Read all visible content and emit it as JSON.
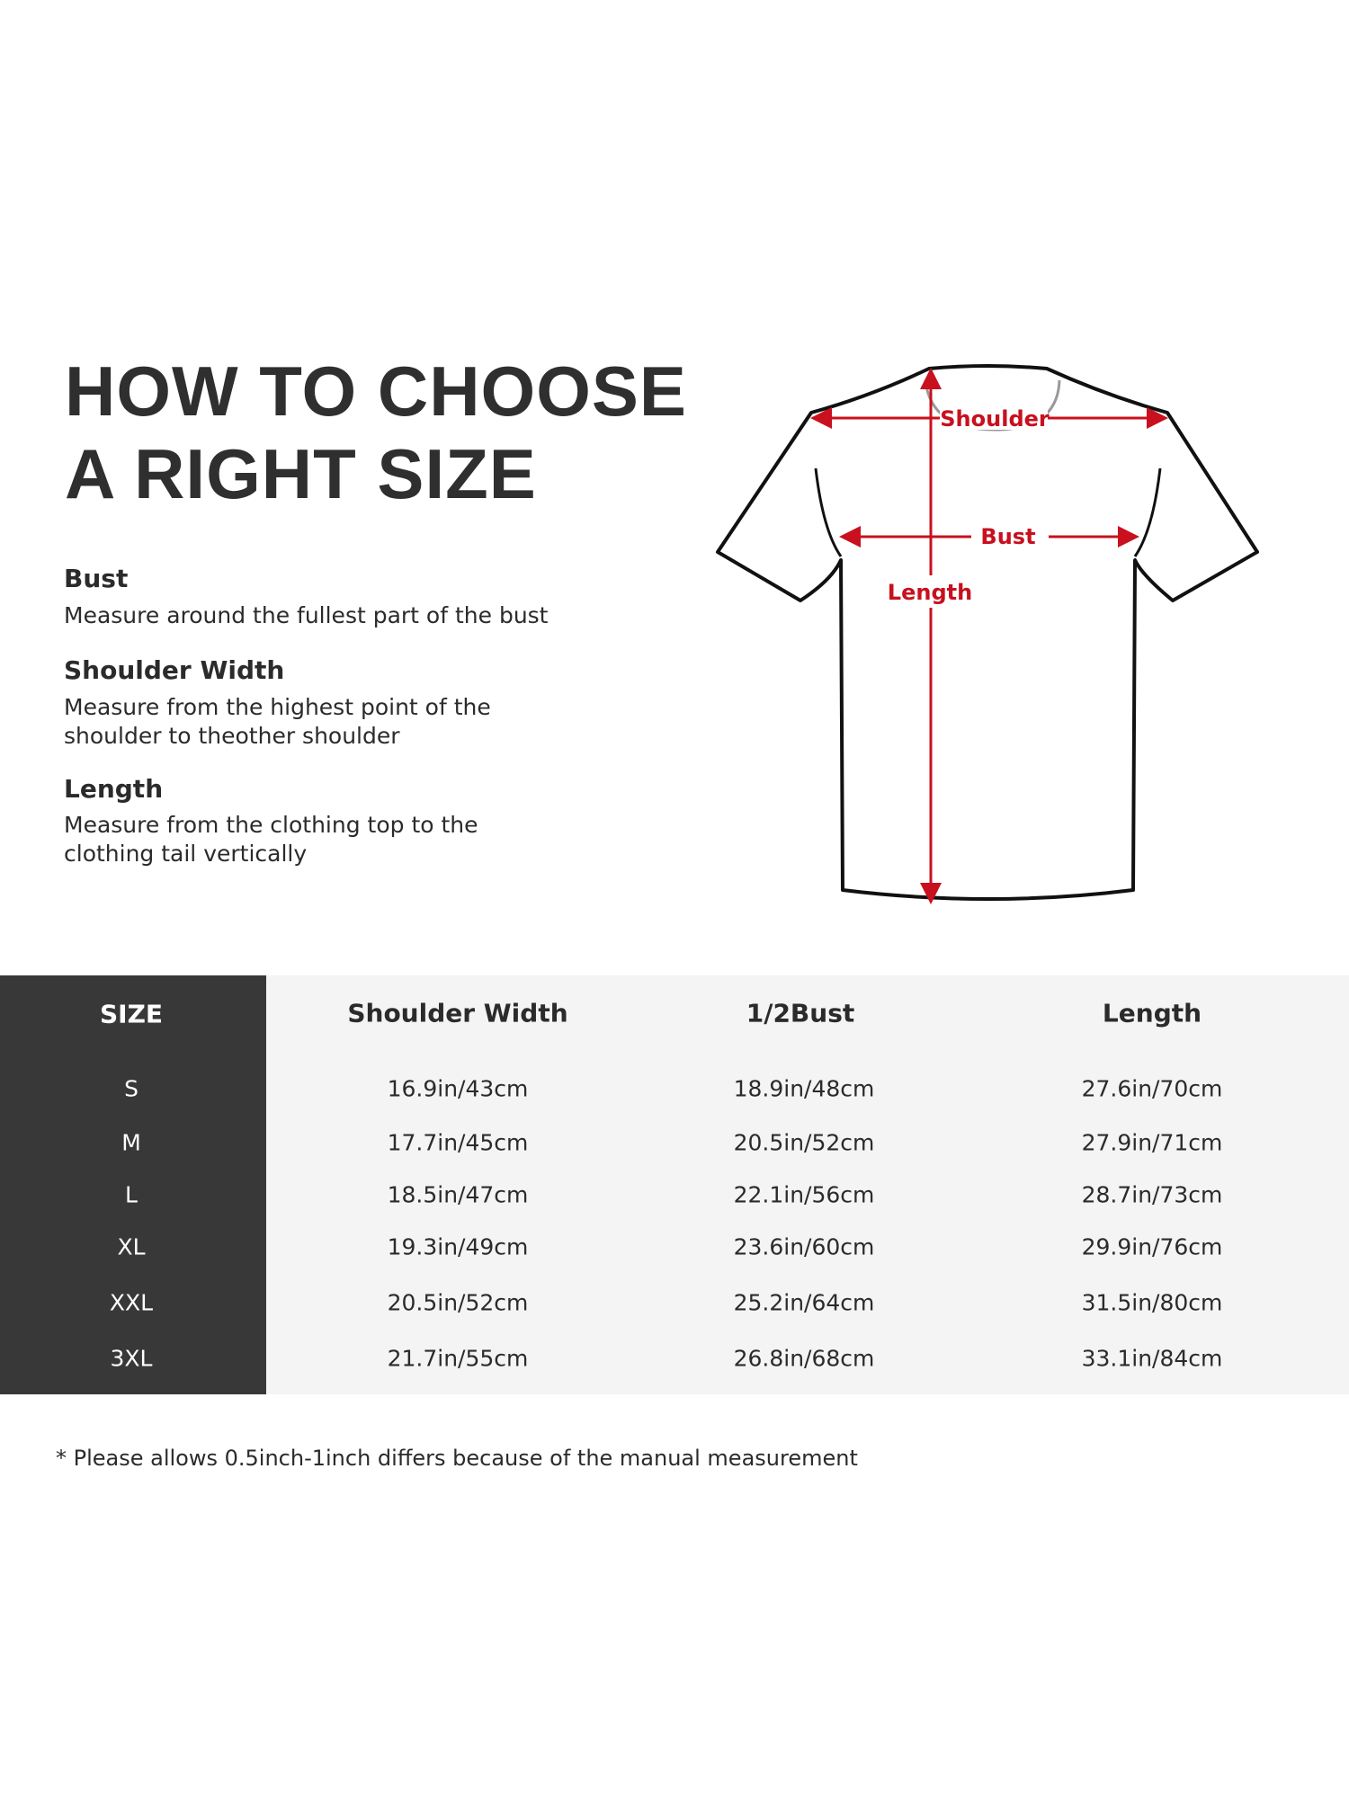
{
  "title_lines": [
    "HOW TO CHOOSE",
    "A RIGHT SIZE"
  ],
  "guide": [
    {
      "heading": "Bust",
      "description_lines": [
        "Measure around the fullest part of the bust"
      ]
    },
    {
      "heading": "Shoulder Width",
      "description_lines": [
        "Measure from the highest point of the",
        "shoulder to theother shoulder"
      ]
    },
    {
      "heading": "Length",
      "description_lines": [
        "Measure from the clothing top to the",
        "clothing tail vertically"
      ]
    }
  ],
  "diagram": {
    "labels": {
      "shoulder": "Shoulder",
      "bust": "Bust",
      "length": "Length"
    },
    "arrow_color": "#c8101e"
  },
  "table": {
    "headers": [
      "SIZE",
      "Shoulder Width",
      "1/2Bust",
      "Length"
    ],
    "rows": [
      [
        "S",
        "16.9in/43cm",
        "18.9in/48cm",
        "27.6in/70cm"
      ],
      [
        "M",
        "17.7in/45cm",
        "20.5in/52cm",
        "27.9in/71cm"
      ],
      [
        "L",
        "18.5in/47cm",
        "22.1in/56cm",
        "28.7in/73cm"
      ],
      [
        "XL",
        "19.3in/49cm",
        "23.6in/60cm",
        "29.9in/76cm"
      ],
      [
        "XXL",
        "20.5in/52cm",
        "25.2in/64cm",
        "31.5in/80cm"
      ],
      [
        "3XL",
        "21.7in/55cm",
        "26.8in/68cm",
        "33.1in/84cm"
      ]
    ]
  },
  "footnote": "* Please allows 0.5inch-1inch differs because of the  manual measurement",
  "colors": {
    "size_column": "#383838",
    "table_bg": "#f4f4f4",
    "accent_red": "#c8101e"
  }
}
